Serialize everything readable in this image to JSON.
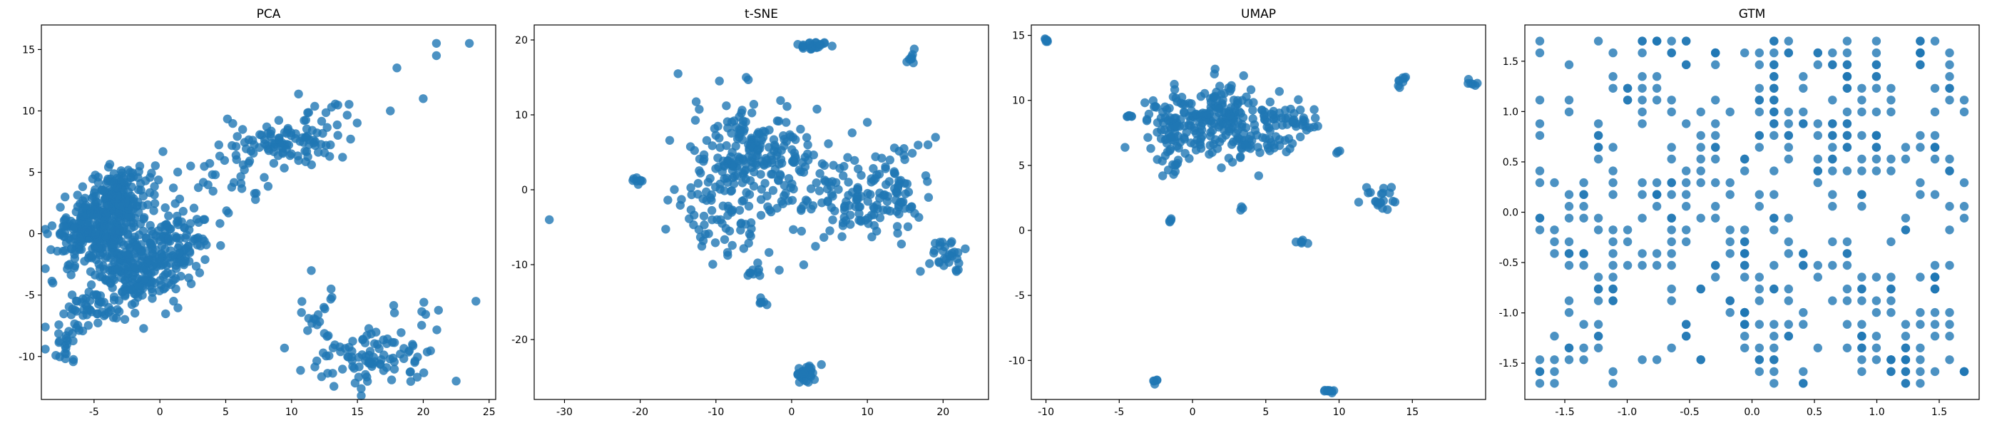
{
  "figure": {
    "marker_color": "#1f77b4",
    "marker_alpha": 0.8
  },
  "chart_data": [
    {
      "type": "scatter",
      "title": "PCA",
      "xlim": [
        -9,
        25.5
      ],
      "ylim": [
        -13.5,
        17
      ],
      "xticks": [
        -5,
        0,
        5,
        10,
        15,
        20,
        25
      ],
      "yticks": [
        -10,
        -5,
        0,
        5,
        10,
        15
      ],
      "clusters": [
        {
          "cx": -5,
          "cy": 0,
          "sx": 1.6,
          "sy": 1.4,
          "n": 260
        },
        {
          "cx": -3,
          "cy": 3,
          "sx": 1.2,
          "sy": 1.2,
          "n": 160
        },
        {
          "cx": -2,
          "cy": -3,
          "sx": 1.5,
          "sy": 1.6,
          "n": 170
        },
        {
          "cx": 1,
          "cy": -1,
          "sx": 1.4,
          "sy": 1.5,
          "n": 120
        },
        {
          "cx": -5,
          "cy": -6,
          "sx": 1.2,
          "sy": 1.0,
          "n": 50
        },
        {
          "cx": -7,
          "cy": -9,
          "sx": 0.6,
          "sy": 0.9,
          "n": 22
        },
        {
          "cx": 4,
          "cy": 4,
          "sx": 2.0,
          "sy": 2.0,
          "n": 45
        },
        {
          "cx": 10,
          "cy": 7.5,
          "sx": 1.8,
          "sy": 0.9,
          "n": 90
        },
        {
          "cx": 13,
          "cy": 9.5,
          "sx": 1.5,
          "sy": 1.2,
          "n": 15
        },
        {
          "cx": 16,
          "cy": -10.2,
          "sx": 2.4,
          "sy": 1.0,
          "n": 90
        },
        {
          "cx": 12,
          "cy": -7,
          "sx": 1.0,
          "sy": 0.7,
          "n": 15
        },
        {
          "cx": 20,
          "cy": -7,
          "sx": 2.2,
          "sy": 1.8,
          "n": 12
        }
      ],
      "extra_points": [
        [
          21,
          15.5
        ],
        [
          21,
          14.5
        ],
        [
          23.5,
          15.5
        ],
        [
          18,
          13.5
        ],
        [
          20,
          11
        ],
        [
          17.5,
          10
        ],
        [
          22.5,
          -12
        ],
        [
          13,
          -4.5
        ],
        [
          24,
          -5.5
        ],
        [
          11.5,
          -3
        ]
      ]
    },
    {
      "type": "scatter",
      "title": "t-SNE",
      "xlim": [
        -34,
        26
      ],
      "ylim": [
        -28,
        22
      ],
      "xticks": [
        -30,
        -20,
        -10,
        0,
        10,
        20
      ],
      "yticks": [
        -20,
        -10,
        0,
        10,
        20
      ],
      "clusters": [
        {
          "cx": -8,
          "cy": 0,
          "sx": 3.5,
          "sy": 5.5,
          "n": 160
        },
        {
          "cx": -4,
          "cy": 6,
          "sx": 2.5,
          "sy": 2.5,
          "n": 80
        },
        {
          "cx": 0,
          "cy": 4,
          "sx": 2.0,
          "sy": 3.5,
          "n": 40
        },
        {
          "cx": 8,
          "cy": -2,
          "sx": 4.0,
          "sy": 3.0,
          "n": 120
        },
        {
          "cx": 14,
          "cy": 1,
          "sx": 2.0,
          "sy": 2.5,
          "n": 40
        },
        {
          "cx": 2.5,
          "cy": 19.2,
          "sx": 1.2,
          "sy": 0.3,
          "n": 25
        },
        {
          "cx": 2,
          "cy": -24.5,
          "sx": 0.8,
          "sy": 0.6,
          "n": 30
        },
        {
          "cx": 21,
          "cy": -8.5,
          "sx": 1.4,
          "sy": 1.2,
          "n": 30
        },
        {
          "cx": -5,
          "cy": -11,
          "sx": 0.5,
          "sy": 0.3,
          "n": 8
        },
        {
          "cx": -4,
          "cy": -15,
          "sx": 0.4,
          "sy": 0.3,
          "n": 6
        },
        {
          "cx": 15.8,
          "cy": 17.5,
          "sx": 0.3,
          "sy": 0.4,
          "n": 8
        },
        {
          "cx": -20.5,
          "cy": 1.2,
          "sx": 0.3,
          "sy": 0.2,
          "n": 8
        }
      ],
      "extra_points": [
        [
          -32,
          -4
        ],
        [
          -15,
          15.5
        ],
        [
          -6,
          15
        ],
        [
          10,
          9
        ],
        [
          19,
          7
        ],
        [
          18,
          6
        ]
      ]
    },
    {
      "type": "scatter",
      "title": "UMAP",
      "xlim": [
        -11,
        20
      ],
      "ylim": [
        -13,
        15.8
      ],
      "xticks": [
        -10,
        -5,
        0,
        5,
        10,
        15
      ],
      "yticks": [
        -10,
        -5,
        0,
        5,
        10,
        15
      ],
      "clusters": [
        {
          "cx": 1,
          "cy": 8.5,
          "sx": 2.2,
          "sy": 1.3,
          "n": 220
        },
        {
          "cx": -1.5,
          "cy": 6,
          "sx": 0.6,
          "sy": 1.5,
          "n": 30
        },
        {
          "cx": 4.5,
          "cy": 6.5,
          "sx": 1.2,
          "sy": 1.0,
          "n": 40
        },
        {
          "cx": 7,
          "cy": 8.3,
          "sx": 1.0,
          "sy": 0.5,
          "n": 30
        },
        {
          "cx": 12.8,
          "cy": 2.5,
          "sx": 0.7,
          "sy": 0.6,
          "n": 20
        },
        {
          "cx": 9.2,
          "cy": -12.3,
          "sx": 0.3,
          "sy": 0.1,
          "n": 10
        },
        {
          "cx": -9.9,
          "cy": 14.6,
          "sx": 0.1,
          "sy": 0.1,
          "n": 6
        },
        {
          "cx": -4.4,
          "cy": 8.8,
          "sx": 0.2,
          "sy": 0.1,
          "n": 6
        },
        {
          "cx": 14.2,
          "cy": 11.6,
          "sx": 0.3,
          "sy": 0.3,
          "n": 8
        },
        {
          "cx": 19,
          "cy": 11.3,
          "sx": 0.2,
          "sy": 0.2,
          "n": 6
        },
        {
          "cx": -2.6,
          "cy": -11.6,
          "sx": 0.1,
          "sy": 0.1,
          "n": 5
        },
        {
          "cx": 7.5,
          "cy": -0.9,
          "sx": 0.3,
          "sy": 0.15,
          "n": 6
        },
        {
          "cx": -1.5,
          "cy": 0.8,
          "sx": 0.1,
          "sy": 0.1,
          "n": 4
        },
        {
          "cx": 10,
          "cy": 6,
          "sx": 0.1,
          "sy": 0.1,
          "n": 3
        },
        {
          "cx": 3.3,
          "cy": 1.6,
          "sx": 0.1,
          "sy": 0.1,
          "n": 3
        }
      ],
      "extra_points": []
    },
    {
      "type": "scatter",
      "title": "GTM",
      "xlim": [
        -1.82,
        1.82
      ],
      "ylim": [
        -1.86,
        1.86
      ],
      "xticks": [
        -1.5,
        -1.0,
        -0.5,
        0.0,
        0.5,
        1.0,
        1.5
      ],
      "yticks": [
        -1.5,
        -1.0,
        -0.5,
        0.0,
        0.5,
        1.0,
        1.5
      ],
      "grid_points": {
        "min": -1.7,
        "max": 1.7,
        "steps": 30,
        "count": 330,
        "seed": 7
      }
    }
  ]
}
